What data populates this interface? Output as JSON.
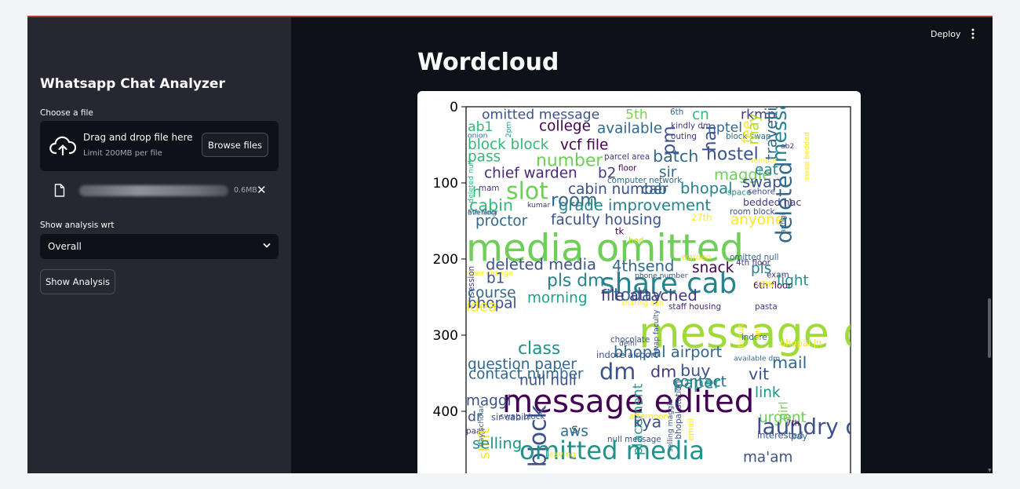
{
  "sidebar": {
    "title": "Whatsapp Chat Analyzer",
    "file_label": "Choose a file",
    "dropzone_title": "Drag and drop file here",
    "dropzone_limit": "Limit 200MB per file",
    "browse_label": "Browse files",
    "file_size": "0.6MB",
    "close_glyph": "✕",
    "select_label": "Show analysis wrt",
    "select_value": "Overall",
    "analysis_button": "Show Analysis"
  },
  "header": {
    "deploy_label": "Deploy"
  },
  "main": {
    "title": "Wordcloud"
  },
  "chart_data": {
    "type": "wordcloud",
    "y_ticks": [
      "0",
      "100",
      "200",
      "300",
      "400"
    ],
    "words": [
      {
        "t": "omitted message",
        "y": 9,
        "s": 15,
        "c": "#3b528b"
      },
      {
        "t": "5th",
        "y": 9,
        "s": 15,
        "c": "#7ad151"
      },
      {
        "t": "6th",
        "y": 6,
        "s": 9,
        "c": "#31688e"
      },
      {
        "t": "cn",
        "y": 9,
        "s": 16,
        "c": "#35b779"
      },
      {
        "t": "rkmp",
        "y": 9,
        "s": 15,
        "c": "#443983"
      },
      {
        "t": "college",
        "y": 24,
        "s": 16,
        "c": "#440154"
      },
      {
        "t": "available",
        "y": 27,
        "s": 16,
        "c": "#31688e"
      },
      {
        "t": "ab1",
        "y": 25,
        "s": 15,
        "c": "#35b779"
      },
      {
        "t": "2pm",
        "y": 24,
        "s": 8,
        "c": "#21918c"
      },
      {
        "t": "onion",
        "y": 37,
        "s": 8,
        "c": "#31688e"
      },
      {
        "t": "kindly dm",
        "y": 24,
        "s": 9,
        "c": "#443983"
      },
      {
        "t": "pm",
        "y": 22,
        "s": 20,
        "c": "#3b528b"
      },
      {
        "t": "outing",
        "y": 38,
        "s": 9,
        "c": "#443983"
      },
      {
        "t": "hai",
        "y": 20,
        "s": 19,
        "c": "#3b528b"
      },
      {
        "t": "nptel",
        "y": 26,
        "s": 15,
        "c": "#31688e"
      },
      {
        "t": "block swap",
        "y": 38,
        "s": 9,
        "c": "#31688e"
      },
      {
        "t": "fee",
        "y": 15,
        "s": 16,
        "c": "#fde725"
      },
      {
        "t": "may",
        "y": 17,
        "s": 16,
        "c": "#b5de2b"
      },
      {
        "t": "travelling",
        "y": 35,
        "s": 17,
        "c": "#31688e"
      },
      {
        "t": "message",
        "y": 28,
        "s": 22,
        "c": "#26828e"
      },
      {
        "t": "ab2",
        "y": 51,
        "s": 8,
        "c": "#443983"
      },
      {
        "t": "block block",
        "y": 48,
        "s": 16,
        "c": "#35b779"
      },
      {
        "t": "vcf file",
        "y": 49,
        "s": 16,
        "c": "#440154"
      },
      {
        "t": "pass",
        "y": 64,
        "s": 16,
        "c": "#35b779"
      },
      {
        "t": "number",
        "y": 69,
        "s": 19,
        "c": "#6ece58"
      },
      {
        "t": "parcel area",
        "y": 65,
        "s": 9,
        "c": "#443983"
      },
      {
        "t": "batch",
        "y": 64,
        "s": 18,
        "c": "#31688e"
      },
      {
        "t": "hostel",
        "y": 61,
        "s": 19,
        "c": "#3b528b"
      },
      {
        "t": "remote",
        "y": 70,
        "s": 8,
        "c": "#fde725"
      },
      {
        "t": "floor",
        "y": 80,
        "s": 9,
        "c": "#440154"
      },
      {
        "t": "chief warden",
        "y": 86,
        "s": 16,
        "c": "#482878"
      },
      {
        "t": "b2",
        "y": 86,
        "s": 16,
        "c": "#443983"
      },
      {
        "t": "sir",
        "y": 85,
        "s": 16,
        "c": "#31688e"
      },
      {
        "t": "maggie",
        "y": 88,
        "s": 17,
        "c": "#6ece58"
      },
      {
        "t": "eat",
        "y": 82,
        "s": 16,
        "c": "#26828e"
      },
      {
        "t": "computer network",
        "y": 96,
        "s": 9,
        "c": "#31688e"
      },
      {
        "t": "swap",
        "y": 98,
        "s": 17,
        "c": "#3b528b"
      },
      {
        "t": "deleted",
        "y": 130,
        "s": 24,
        "c": "#31688e"
      },
      {
        "t": "mam",
        "y": 106,
        "s": 9,
        "c": "#443983"
      },
      {
        "t": "h",
        "y": 111,
        "s": 16,
        "c": "#35b779"
      },
      {
        "t": "slot",
        "y": 109,
        "s": 26,
        "c": "#6ece58"
      },
      {
        "t": "cabin number",
        "y": 107,
        "s": 16,
        "c": "#3b528b"
      },
      {
        "t": "cab",
        "y": 107,
        "s": 16,
        "c": "#31688e"
      },
      {
        "t": "bhopal",
        "y": 106,
        "s": 17,
        "c": "#26828e"
      },
      {
        "t": "space",
        "y": 112,
        "s": 9,
        "c": "#21918c"
      },
      {
        "t": "sehore",
        "y": 111,
        "s": 9,
        "c": "#3b528b"
      },
      {
        "t": "deleted null",
        "y": 110,
        "s": 8,
        "c": "#35b779"
      },
      {
        "t": "swap bedded",
        "y": 80,
        "s": 8,
        "c": "#fde725"
      },
      {
        "t": "cabin",
        "y": 128,
        "s": 18,
        "c": "#35b779"
      },
      {
        "t": "kumar",
        "y": 128,
        "s": 8,
        "c": "#443983"
      },
      {
        "t": "room",
        "y": 121,
        "s": 20,
        "c": "#31688e"
      },
      {
        "t": "grade improvement",
        "y": 128,
        "s": 17,
        "c": "#26828e"
      },
      {
        "t": "bedded nac",
        "y": 125,
        "s": 11,
        "c": "#443983"
      },
      {
        "t": "evening",
        "y": 138,
        "s": 8,
        "c": "#31688e"
      },
      {
        "t": "5th floor",
        "y": 138,
        "s": 8,
        "c": "#31688e"
      },
      {
        "t": "room block",
        "y": 137,
        "s": 9,
        "c": "#3b528b"
      },
      {
        "t": "proctor",
        "y": 149,
        "s": 16,
        "c": "#31688e"
      },
      {
        "t": "faculty housing",
        "y": 147,
        "s": 16,
        "c": "#3b528b"
      },
      {
        "t": "27th",
        "y": 145,
        "s": 10,
        "c": "#fde725"
      },
      {
        "t": "anyone",
        "y": 147,
        "s": 16,
        "c": "#fde725"
      },
      {
        "t": "aungi",
        "y": 150,
        "s": 8,
        "c": "#31688e"
      },
      {
        "t": "media omitted",
        "y": 183,
        "s": 42,
        "c": "#6ece58"
      },
      {
        "t": "tk",
        "y": 163,
        "s": 10,
        "c": "#440154"
      },
      {
        "t": "bed",
        "y": 175,
        "s": 9,
        "c": "#b5de2b"
      },
      {
        "t": "warden",
        "y": 197,
        "s": 9,
        "c": "#fde725"
      },
      {
        "t": "omitted null",
        "y": 197,
        "s": 9,
        "c": "#31688e"
      },
      {
        "t": "4th floor",
        "y": 204,
        "s": 9,
        "c": "#443983"
      },
      {
        "t": "deleted media",
        "y": 206,
        "s": 17,
        "c": "#3b528b"
      },
      {
        "t": "4thsend",
        "y": 208,
        "s": 17,
        "c": "#31688e"
      },
      {
        "t": "snack",
        "y": 210,
        "s": 16,
        "c": "#440154"
      },
      {
        "t": "pls",
        "y": 211,
        "s": 16,
        "c": "#26828e"
      },
      {
        "t": "oper change",
        "y": 218,
        "s": 8,
        "c": "#fde725"
      },
      {
        "t": "b1",
        "y": 224,
        "s": 16,
        "c": "#3b528b"
      },
      {
        "t": "pls dm",
        "y": 227,
        "s": 19,
        "c": "#26828e"
      },
      {
        "t": "share cab",
        "y": 230,
        "s": 31,
        "c": "#26828e"
      },
      {
        "t": "phone number",
        "y": 221,
        "s": 8,
        "c": "#3b528b"
      },
      {
        "t": "exam",
        "y": 220,
        "s": 9,
        "c": "#443983"
      },
      {
        "t": "light",
        "y": 227,
        "s": 16,
        "c": "#21918c"
      },
      {
        "t": "session",
        "y": 230,
        "s": 9,
        "c": "#443983"
      },
      {
        "t": "6th floor",
        "y": 234,
        "s": 10,
        "c": "#440154"
      },
      {
        "t": "10th",
        "y": 233,
        "s": 9,
        "c": "#fde725"
      },
      {
        "t": "course",
        "y": 243,
        "s": 16,
        "c": "#31688e"
      },
      {
        "t": "morning",
        "y": 250,
        "s": 16,
        "c": "#1f9e89"
      },
      {
        "t": "today",
        "y": 246,
        "s": 19,
        "c": "#31688e"
      },
      {
        "t": "file attached",
        "y": 247,
        "s": 17,
        "c": "#443983"
      },
      {
        "t": "bhopal",
        "y": 257,
        "s": 16,
        "c": "#3b528b"
      },
      {
        "t": "sharing cab",
        "y": 257,
        "s": 8,
        "c": "#fde725"
      },
      {
        "t": "staff housing",
        "y": 262,
        "s": 9,
        "c": "#482878"
      },
      {
        "t": "pasta",
        "y": 262,
        "s": 9,
        "c": "#443983"
      },
      {
        "t": "idea",
        "y": 261,
        "s": 16,
        "c": "#fde725"
      },
      {
        "t": "message deleted",
        "y": 294,
        "s": 47,
        "c": "#a0da39"
      },
      {
        "t": "swap faculty",
        "y": 310,
        "s": 8,
        "c": "#3b528b"
      },
      {
        "t": "biscuit",
        "y": 300,
        "s": 8,
        "c": "#fde725"
      },
      {
        "t": "indore",
        "y": 302,
        "s": 9,
        "c": "#31688e"
      },
      {
        "t": "9th",
        "y": 290,
        "s": 8,
        "c": "#fde725"
      },
      {
        "t": "class",
        "y": 316,
        "s": 19,
        "c": "#21918c"
      },
      {
        "t": "chocolate",
        "y": 305,
        "s": 9,
        "c": "#3b528b"
      },
      {
        "t": "delhi",
        "y": 310,
        "s": 8,
        "c": "#3b528b"
      },
      {
        "t": "bhopal jn",
        "y": 310,
        "s": 10,
        "c": "#fde725"
      },
      {
        "t": "bhopal airport",
        "y": 321,
        "s": 17,
        "c": "#31688e"
      },
      {
        "t": "indore airport",
        "y": 325,
        "s": 10,
        "c": "#3b528b"
      },
      {
        "t": "available dm",
        "y": 330,
        "s": 8,
        "c": "#31688e"
      },
      {
        "t": "mail",
        "y": 335,
        "s": 18,
        "c": "#31688e"
      },
      {
        "t": "question paper",
        "y": 337,
        "s": 16,
        "c": "#31688e"
      },
      {
        "t": "dm",
        "y": 346,
        "s": 25,
        "c": "#3b528b"
      },
      {
        "t": "dm",
        "y": 347,
        "s": 18,
        "c": "#443983"
      },
      {
        "t": "buy",
        "y": 345,
        "s": 18,
        "c": "#3b528b"
      },
      {
        "t": "vit",
        "y": 350,
        "s": 18,
        "c": "#3b528b"
      },
      {
        "t": "contact number",
        "y": 350,
        "s": 16,
        "c": "#31688e"
      },
      {
        "t": "null null",
        "y": 358,
        "s": 16,
        "c": "#3b528b"
      },
      {
        "t": "contact",
        "y": 360,
        "s": 16,
        "c": "#31688e"
      },
      {
        "t": "paper",
        "y": 361,
        "s": 18,
        "c": "#21918c"
      },
      {
        "t": "link",
        "y": 374,
        "s": 16,
        "c": "#21918c"
      },
      {
        "t": "message edited",
        "y": 385,
        "s": 35,
        "c": "#440154"
      },
      {
        "t": "girl",
        "y": 385,
        "s": 13,
        "c": "#7ad151"
      },
      {
        "t": "maggi",
        "y": 385,
        "s": 16,
        "c": "#3b528b"
      },
      {
        "t": "block",
        "y": 420,
        "s": 26,
        "c": "#3b528b"
      },
      {
        "t": "placement",
        "y": 427,
        "s": 15,
        "c": "#1f9e89"
      },
      {
        "t": "urgent",
        "y": 407,
        "s": 16,
        "c": "#6ece58"
      },
      {
        "t": "dr",
        "y": 406,
        "s": 15,
        "c": "#3b528b"
      },
      {
        "t": "sir cabin",
        "y": 407,
        "s": 10,
        "c": "#3b528b"
      },
      {
        "t": "swap block",
        "y": 406,
        "s": 9,
        "c": "#3b528b"
      },
      {
        "t": "afternoon",
        "y": 406,
        "s": 9,
        "c": "#fde725"
      },
      {
        "t": "kya",
        "y": 413,
        "s": 18,
        "c": "#3b528b"
      },
      {
        "t": "bhopal station",
        "y": 418,
        "s": 9,
        "c": "#3b528b"
      },
      {
        "t": "laundry didi",
        "y": 419,
        "s": 24,
        "c": "#3b528b"
      },
      {
        "t": "7th",
        "y": 415,
        "s": 9,
        "c": "#440154"
      },
      {
        "t": "s",
        "y": 422,
        "s": 15,
        "c": "#31688e"
      },
      {
        "t": "aws",
        "y": 425,
        "s": 16,
        "c": "#31688e"
      },
      {
        "t": "paas",
        "y": 425,
        "s": 9,
        "c": "#443983"
      },
      {
        "t": "shift",
        "y": 430,
        "s": 16,
        "c": "#fde725"
      },
      {
        "t": "email",
        "y": 420,
        "s": 9,
        "c": "#fde725"
      },
      {
        "t": "interested",
        "y": 431,
        "s": 10,
        "c": "#3b528b"
      },
      {
        "t": "pay",
        "y": 432,
        "s": 10,
        "c": "#31688e"
      },
      {
        "t": "null message",
        "y": 436,
        "s": 9,
        "c": "#3b528b"
      },
      {
        "t": "selling maggie",
        "y": 437,
        "s": 8,
        "c": "#3b528b"
      },
      {
        "t": "day scholar",
        "y": 430,
        "s": 8,
        "c": "#31688e"
      },
      {
        "t": "selling",
        "y": 441,
        "s": 17,
        "c": "#21918c"
      },
      {
        "t": "omitted media",
        "y": 450,
        "s": 28,
        "c": "#21918c"
      },
      {
        "t": "ma'am",
        "y": 459,
        "s": 16,
        "c": "#3b528b"
      },
      {
        "t": "leaving",
        "y": 456,
        "s": 9,
        "c": "#fde725"
      }
    ]
  }
}
